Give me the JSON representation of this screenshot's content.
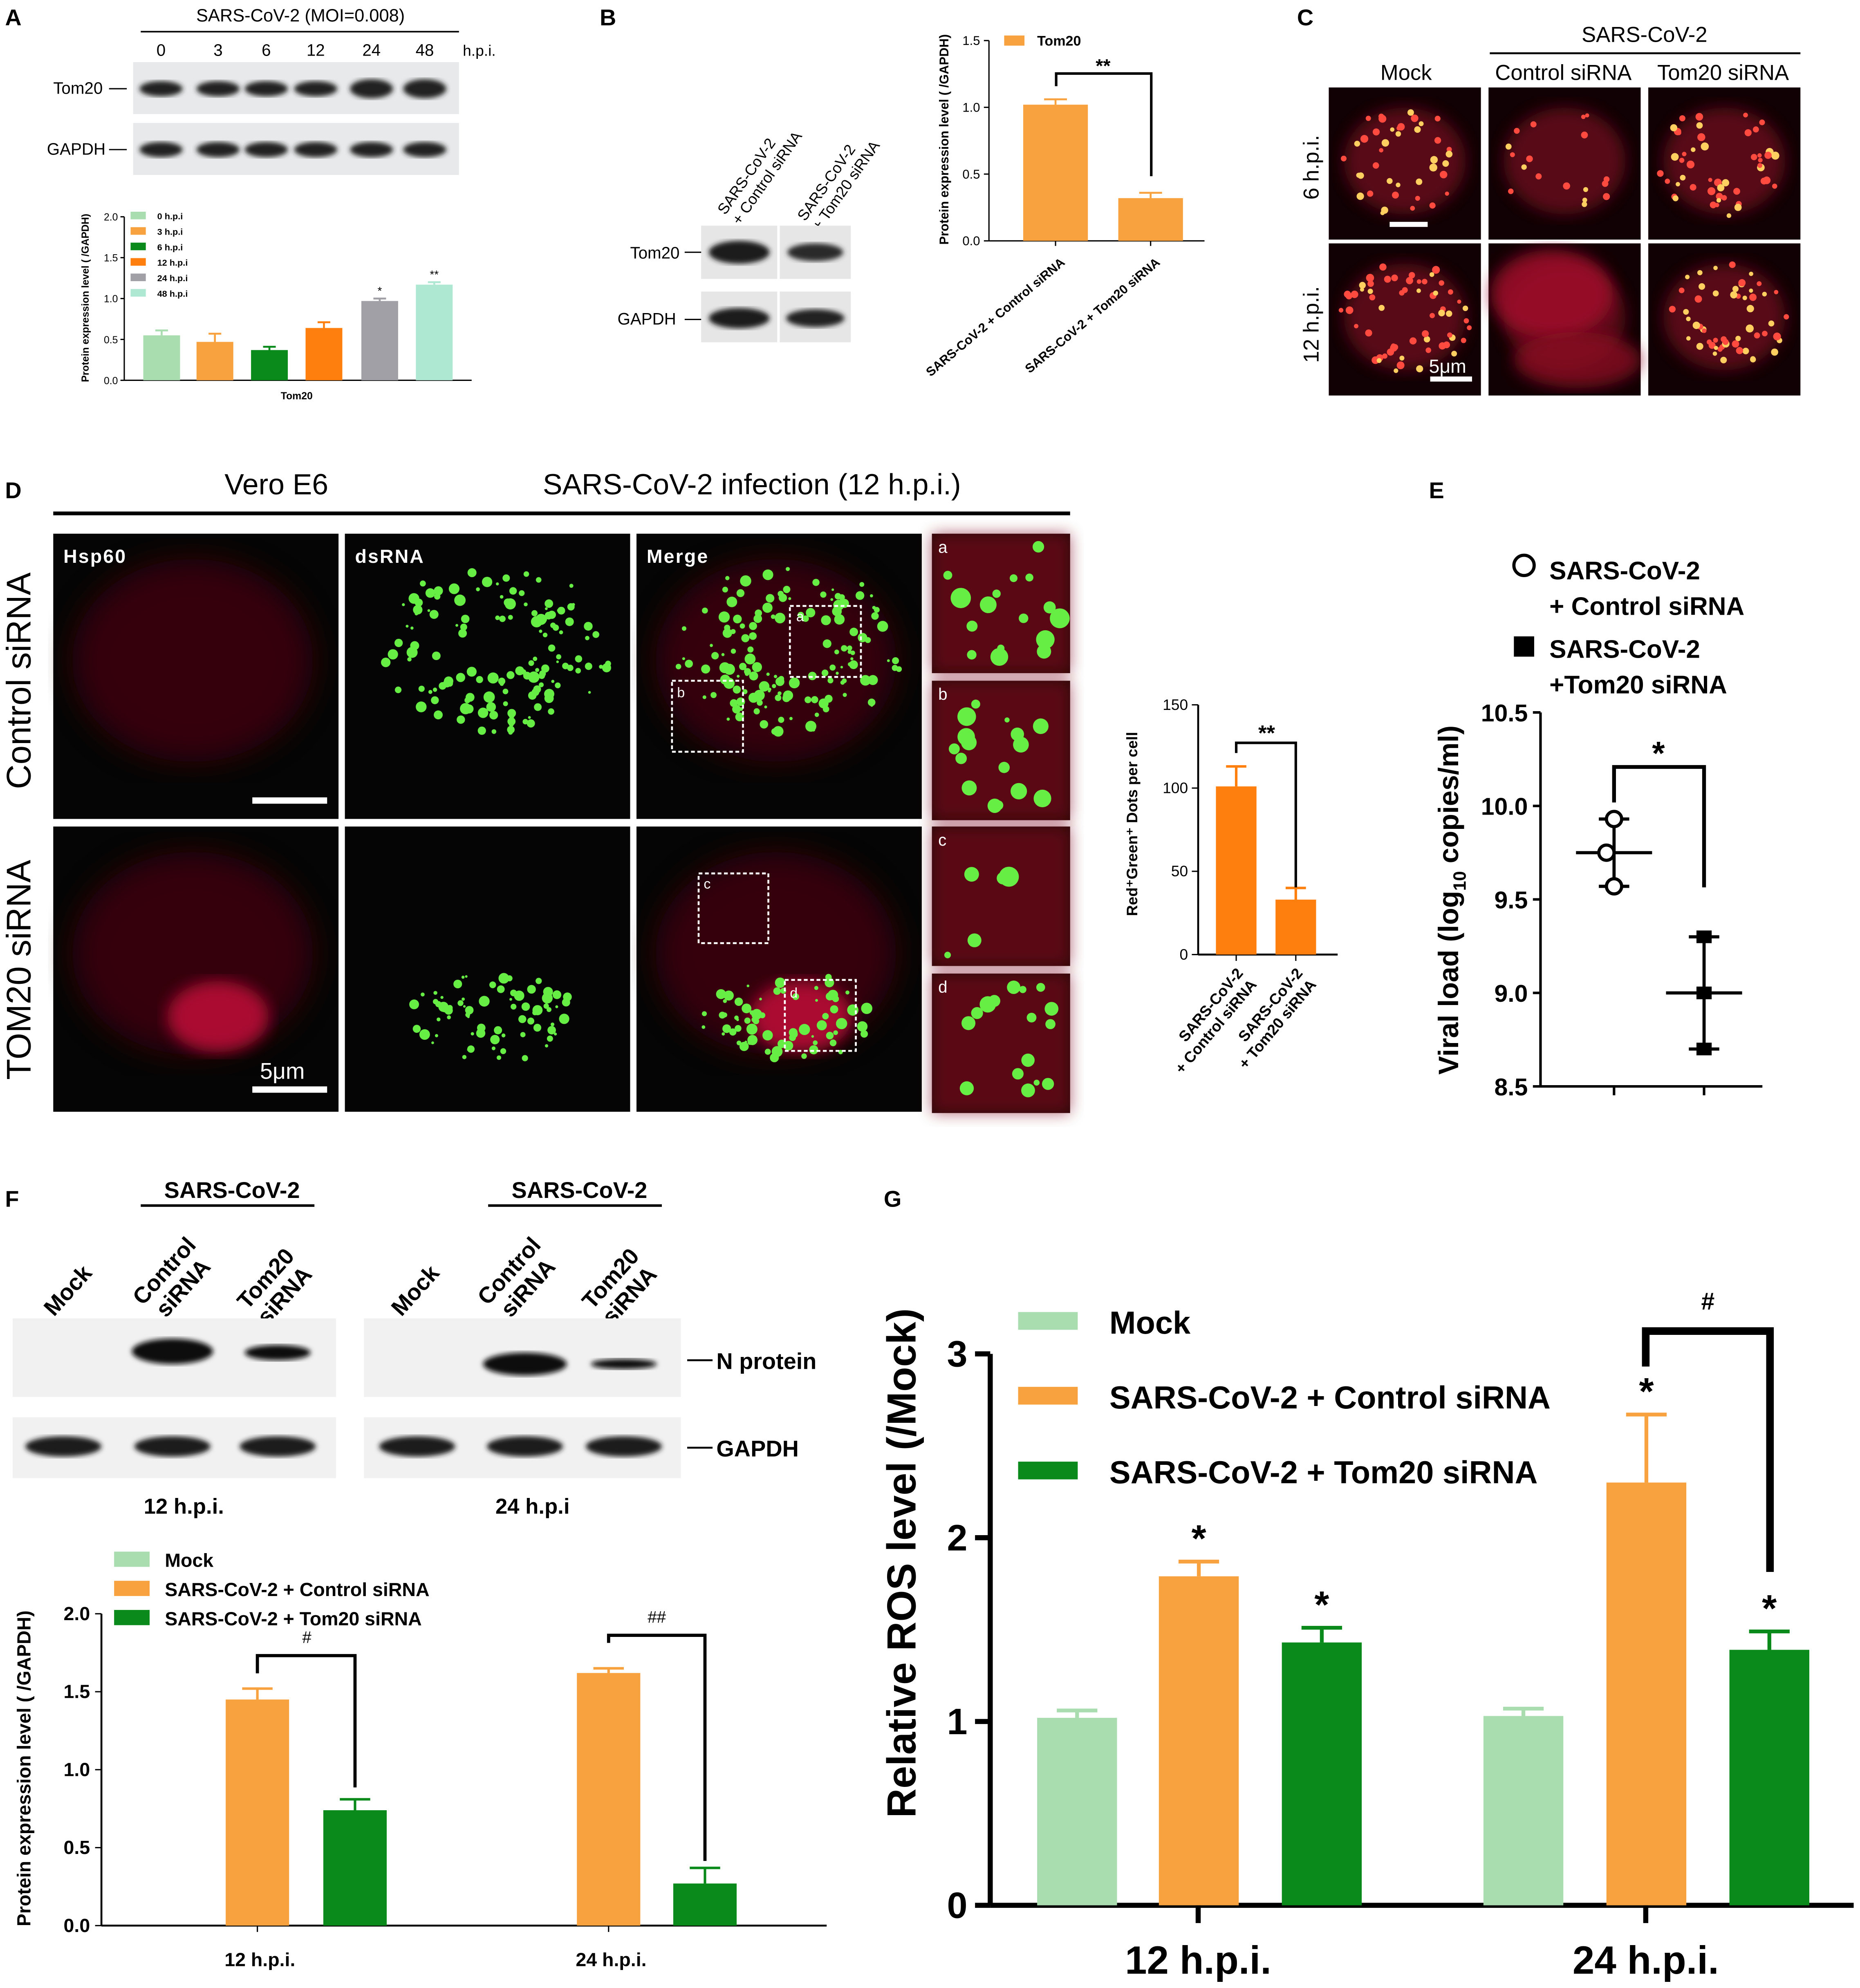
{
  "colors": {
    "orange": "#f7a23e",
    "dark_orange": "#ff7f0e",
    "dark_green": "#0a8a1a",
    "light_green": "#a9ddb0",
    "mint": "#aee8d3",
    "grey": "#a0a0a6",
    "red_cell": "#c0103a",
    "green_dot": "#66ee44"
  },
  "panels": {
    "A": {
      "letter": "A",
      "header": "SARS-CoV-2 (MOI=0.008)",
      "timepoints": [
        "0",
        "3",
        "6",
        "12",
        "24",
        "48"
      ],
      "hpi_label": "h.p.i.",
      "blot_labels": [
        "Tom20",
        "GAPDH"
      ],
      "legend": [
        "0 h.p.i",
        "3 h.p.i",
        "6 h.p.i",
        "12 h.p.i",
        "24 h.p.i",
        "48 h.p.i"
      ],
      "stars": [
        "",
        "",
        "",
        "",
        "*",
        "**"
      ]
    },
    "B": {
      "letter": "B",
      "lane_labels": [
        "SARS-CoV-2\n+ Control siRNA",
        "SARS-CoV-2\n+ Tom20 siRNA"
      ],
      "blot_labels": [
        "Tom20",
        "GAPDH"
      ],
      "sig": "**"
    },
    "C": {
      "letter": "C",
      "header": "SARS-CoV-2",
      "columns": [
        "Mock",
        "Control siRNA",
        "Tom20 siRNA"
      ],
      "rows": [
        "6 h.p.i.",
        "12 h.p.i."
      ],
      "scale_label": "5μm"
    },
    "D": {
      "letter": "D",
      "cell_line": "Vero E6",
      "header": "SARS-CoV-2 infection (12 h.p.i.)",
      "channels": [
        "Hsp60",
        "dsRNA",
        "Merge"
      ],
      "rows": [
        "Control siRNA",
        "TOM20 siRNA"
      ],
      "insets": [
        "a",
        "b",
        "c",
        "d"
      ],
      "scale_label": "5μm",
      "sig": "**"
    },
    "E": {
      "letter": "E",
      "legend": [
        {
          "line1": "SARS-CoV-2",
          "line2": "+ Control siRNA"
        },
        {
          "line1": "SARS-CoV-2",
          "line2": "+Tom20 siRNA"
        }
      ],
      "sig": "*"
    },
    "F": {
      "letter": "F",
      "groups": [
        {
          "header": "SARS-CoV-2",
          "time": "12 h.p.i.",
          "lanes": [
            "Mock",
            "Control siRNA",
            "Tom20 siRNA"
          ]
        },
        {
          "header": "SARS-CoV-2",
          "time": "24 h.p.i",
          "lanes": [
            "Mock",
            "Control siRNA",
            "Tom20 siRNA"
          ]
        }
      ],
      "blot_labels": [
        "N protein",
        "GAPDH"
      ],
      "sigs": [
        "#",
        "##"
      ]
    },
    "G": {
      "letter": "G",
      "stars": [
        [
          "",
          "*",
          "*"
        ],
        [
          "",
          "*",
          "*"
        ]
      ],
      "sig": "#"
    }
  },
  "chart_data": [
    {
      "id": "A",
      "type": "bar",
      "categories": [
        "Tom20"
      ],
      "series": [
        {
          "name": "0 h.p.i",
          "values": [
            0.55
          ],
          "err": [
            0.06
          ]
        },
        {
          "name": "3 h.p.i",
          "values": [
            0.47
          ],
          "err": [
            0.1
          ]
        },
        {
          "name": "6 h.p.i",
          "values": [
            0.37
          ],
          "err": [
            0.04
          ]
        },
        {
          "name": "12 h.p.i",
          "values": [
            0.64
          ],
          "err": [
            0.07
          ]
        },
        {
          "name": "24 h.p.i",
          "values": [
            0.97
          ],
          "err": [
            0.03
          ]
        },
        {
          "name": "48 h.p.i",
          "values": [
            1.17
          ],
          "err": [
            0.03
          ]
        }
      ],
      "ylabel": "Protein expression level ( /GAPDH)",
      "xlabel": "Tom20",
      "ylim": [
        0,
        2.0
      ],
      "yticks": [
        "0.0",
        "0.5",
        "1.0",
        "1.5",
        "2.0"
      ]
    },
    {
      "id": "B",
      "type": "bar",
      "categories": [
        "SARS-CoV-2 + Control siRNA",
        "SARS-CoV-2 + Tom20 siRNA"
      ],
      "series": [
        {
          "name": "Tom20",
          "values": [
            1.02,
            0.32
          ],
          "err": [
            0.04,
            0.04
          ]
        }
      ],
      "ylabel": "Protein expression level ( /GAPDH)",
      "ylim": [
        0,
        1.5
      ],
      "yticks": [
        "0.0",
        "0.5",
        "1.0",
        "1.5"
      ]
    },
    {
      "id": "D",
      "type": "bar",
      "categories": [
        "SARS-CoV-2\n+ Control siRNA",
        "SARS-CoV-2\n+ Tom20 siRNA"
      ],
      "series": [
        {
          "values": [
            101,
            33
          ],
          "err": [
            12,
            7
          ]
        }
      ],
      "ylabel": "Red⁺Green⁺ Dots per cell",
      "ylim": [
        0,
        150
      ],
      "yticks": [
        "0",
        "50",
        "100",
        "150"
      ]
    },
    {
      "id": "E",
      "type": "scatter",
      "series": [
        {
          "name": "SARS-CoV-2 + Control siRNA",
          "points": [
            9.93,
            9.75,
            9.57
          ],
          "mean": 9.75,
          "sd": 0.18
        },
        {
          "name": "SARS-CoV-2 +Tom20 siRNA",
          "points": [
            9.3,
            9.0,
            8.7
          ],
          "mean": 9.0,
          "sd": 0.3
        }
      ],
      "ylabel": "Viral load (log10 copies/ml)",
      "ylim": [
        8.5,
        10.5
      ],
      "yticks": [
        "8.5",
        "9.0",
        "9.5",
        "10.0",
        "10.5"
      ]
    },
    {
      "id": "F",
      "type": "bar",
      "categories": [
        "12 h.p.i.",
        "24 h.p.i."
      ],
      "series": [
        {
          "name": "Mock",
          "values": [
            0,
            0
          ],
          "err": [
            0,
            0
          ]
        },
        {
          "name": "SARS-CoV-2 + Control siRNA",
          "values": [
            1.45,
            1.62
          ],
          "err": [
            0.07,
            0.03
          ]
        },
        {
          "name": "SARS-CoV-2 + Tom20 siRNA",
          "values": [
            0.74,
            0.27
          ],
          "err": [
            0.07,
            0.1
          ]
        }
      ],
      "ylabel": "Protein expression level ( /GAPDH)",
      "ylim": [
        0,
        2.0
      ],
      "yticks": [
        "0.0",
        "0.5",
        "1.0",
        "1.5",
        "2.0"
      ]
    },
    {
      "id": "G",
      "type": "bar",
      "categories": [
        "12 h.p.i.",
        "24 h.p.i."
      ],
      "series": [
        {
          "name": "Mock",
          "values": [
            1.02,
            1.03
          ],
          "err": [
            0.04,
            0.04
          ]
        },
        {
          "name": "SARS-CoV-2 + Control siRNA",
          "values": [
            1.79,
            2.3
          ],
          "err": [
            0.08,
            0.37
          ]
        },
        {
          "name": "SARS-CoV-2 + Tom20 siRNA",
          "values": [
            1.43,
            1.39
          ],
          "err": [
            0.08,
            0.1
          ]
        }
      ],
      "ylabel": "Relative ROS level (/Mock)",
      "ylim": [
        0,
        3
      ],
      "yticks": [
        "0",
        "1",
        "2",
        "3"
      ]
    }
  ]
}
